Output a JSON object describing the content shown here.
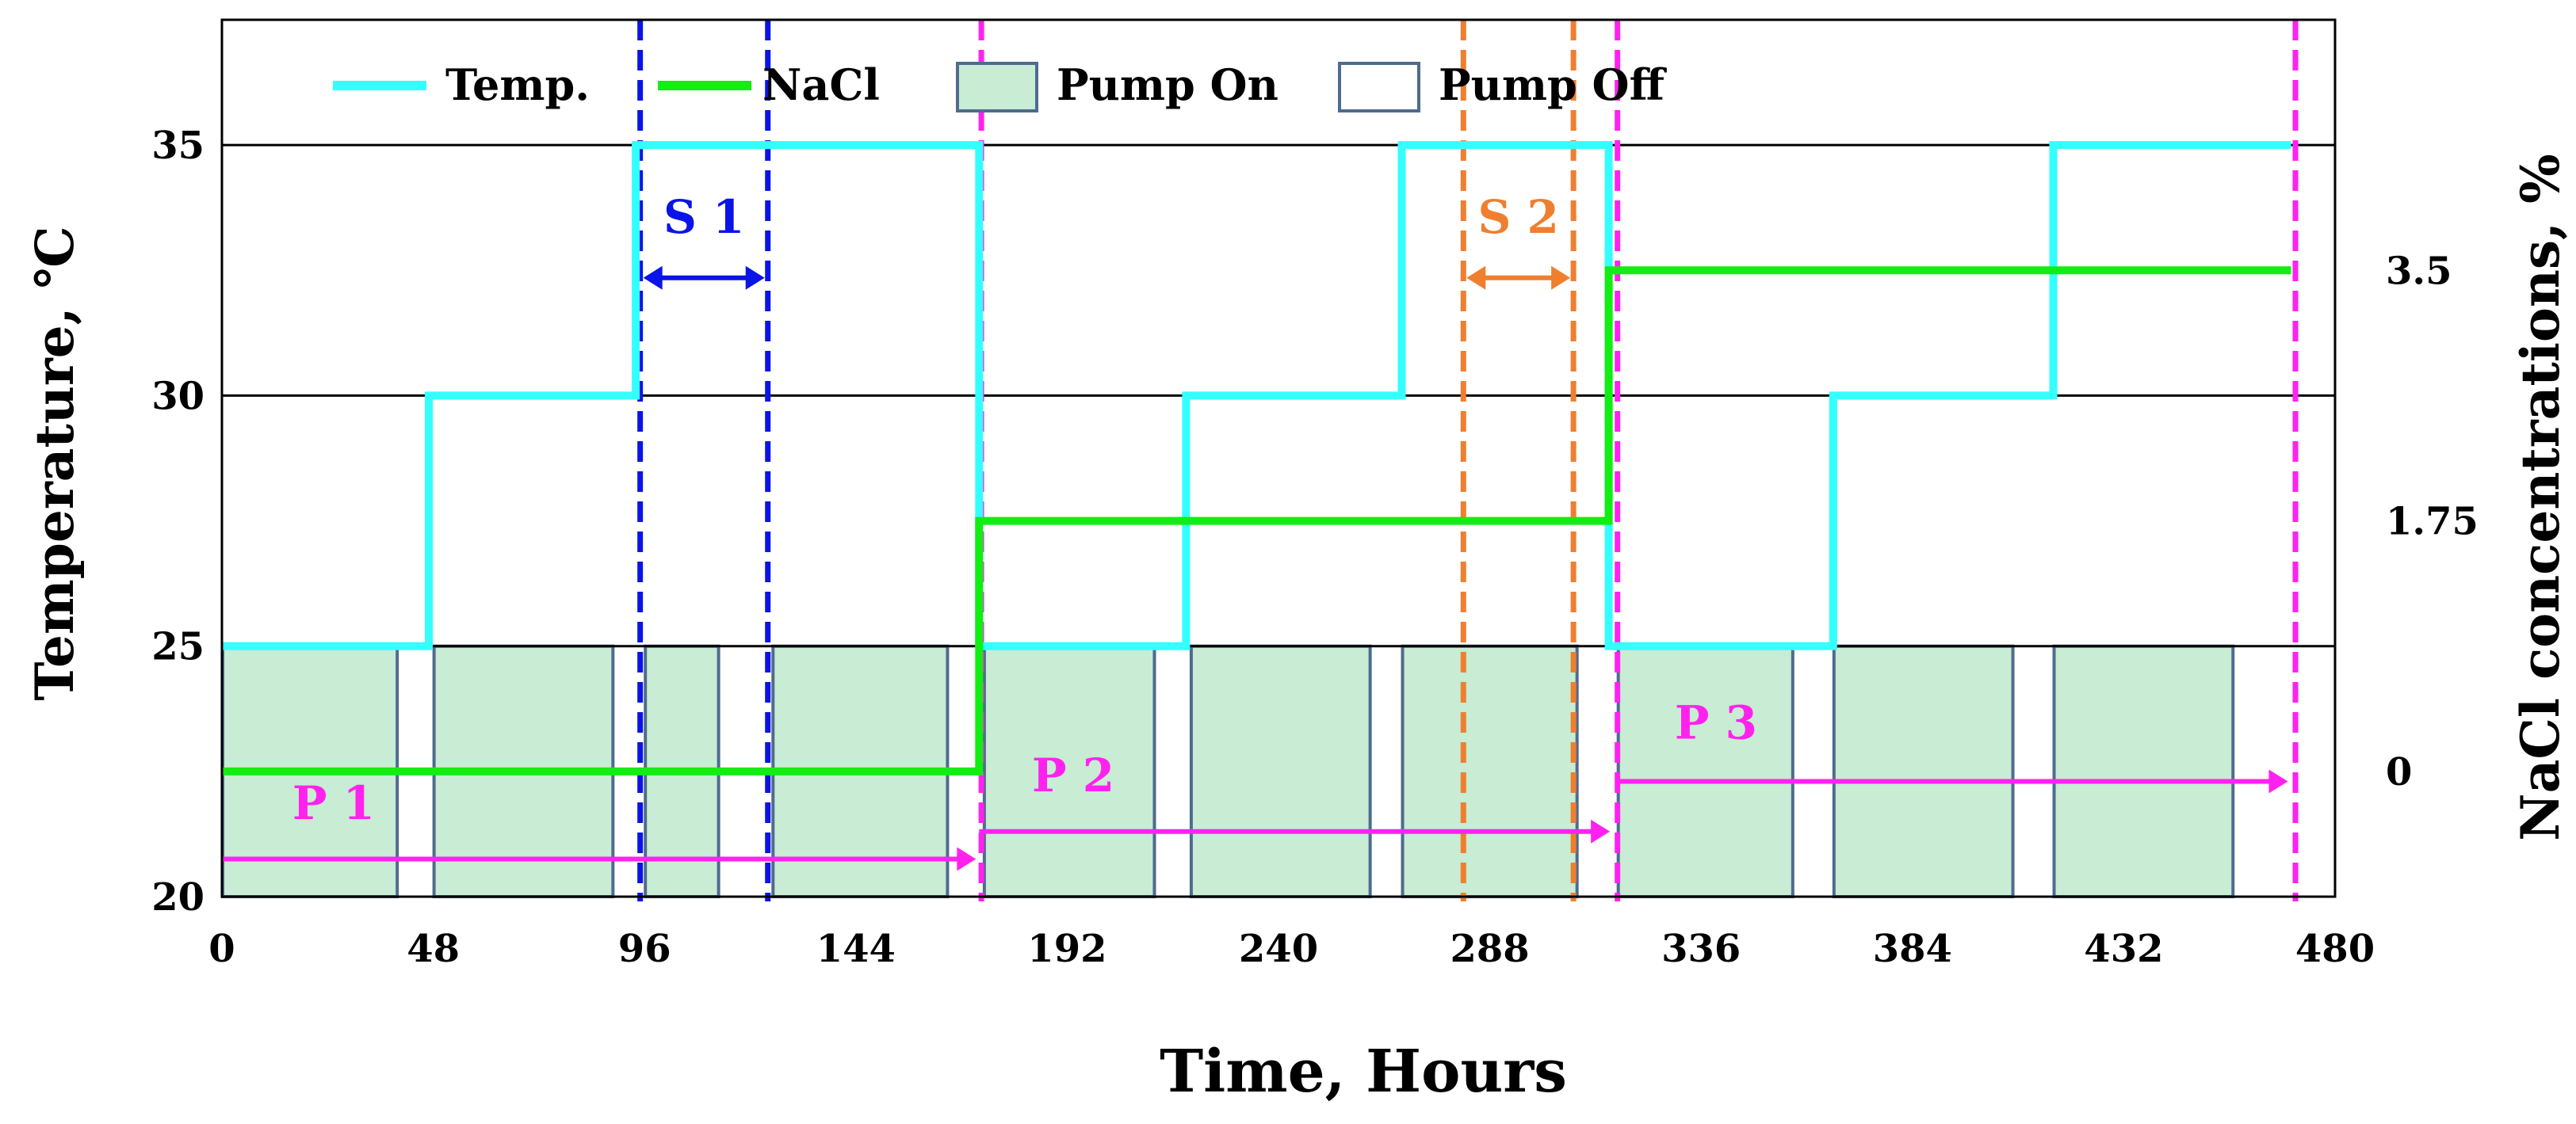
{
  "chart_data": {
    "type": "line",
    "xlabel": "Time, Hours",
    "ylabel": "Temperature, ℃",
    "y2label": "NaCl concentrations, %",
    "xlim": [
      0,
      480
    ],
    "ylim": [
      20,
      37.5
    ],
    "x_ticks": [
      0,
      48,
      96,
      144,
      192,
      240,
      288,
      336,
      384,
      432,
      480
    ],
    "x_tick_labels": [
      "0",
      "48",
      "96",
      "144",
      "192",
      "240",
      "288",
      "336",
      "384",
      "432",
      "480"
    ],
    "y_ticks": [
      20,
      25,
      30,
      35
    ],
    "y_tick_labels": [
      "20",
      "25",
      "30",
      "35"
    ],
    "y2_ticks": [
      {
        "y": 22.5,
        "label": "0"
      },
      {
        "y": 27.5,
        "label": "1.75"
      },
      {
        "y": 32.5,
        "label": "3.5"
      }
    ],
    "gridlines_y": [
      25,
      30,
      35
    ],
    "legend": {
      "position": "top-left",
      "entries": [
        {
          "label": "Temp.",
          "kind": "line",
          "color": "#33ffff"
        },
        {
          "label": "NaCl",
          "kind": "line",
          "color": "#11ee11"
        },
        {
          "label": "Pump On",
          "kind": "box",
          "fill": "#c8ecd4",
          "stroke": "#4f6b8d"
        },
        {
          "label": "Pump Off",
          "kind": "box",
          "fill": "#ffffff",
          "stroke": "#4f6b8d"
        }
      ]
    },
    "series": [
      {
        "name": "Temp.",
        "color": "#33ffff",
        "points": [
          [
            0,
            25
          ],
          [
            47,
            25
          ],
          [
            47,
            30
          ],
          [
            94,
            30
          ],
          [
            94,
            35
          ],
          [
            172,
            35
          ],
          [
            172,
            25
          ],
          [
            219,
            25
          ],
          [
            219,
            30
          ],
          [
            268,
            30
          ],
          [
            268,
            35
          ],
          [
            315,
            35
          ],
          [
            315,
            25
          ],
          [
            366,
            25
          ],
          [
            366,
            30
          ],
          [
            416,
            30
          ],
          [
            416,
            35
          ],
          [
            470,
            35
          ]
        ]
      },
      {
        "name": "NaCl",
        "color": "#11ee11",
        "points": [
          [
            0,
            22.5
          ],
          [
            172,
            22.5
          ],
          [
            172,
            27.5
          ],
          [
            315,
            27.5
          ],
          [
            315,
            32.5
          ],
          [
            470,
            32.5
          ]
        ]
      }
    ],
    "pump_on_periods": [
      [
        0,
        40
      ],
      [
        48,
        89
      ],
      [
        96,
        113
      ],
      [
        125,
        165
      ],
      [
        173,
        212
      ],
      [
        220,
        261
      ],
      [
        268,
        308
      ],
      [
        317,
        357
      ],
      [
        366,
        407
      ],
      [
        416,
        457
      ]
    ],
    "box_top": 25,
    "vertical_markers": [
      {
        "x": 95,
        "color": "#0a14e6"
      },
      {
        "x": 124,
        "color": "#0a14e6"
      },
      {
        "x": 172.5,
        "color": "#ff22ee"
      },
      {
        "x": 282,
        "color": "#ef7f2f"
      },
      {
        "x": 307,
        "color": "#ef7f2f"
      },
      {
        "x": 317,
        "color": "#ff22ee"
      },
      {
        "x": 471,
        "color": "#ff22ee"
      }
    ],
    "annotations": [
      {
        "label": "S 1",
        "from": 95,
        "to": 124,
        "y": 32.35,
        "label_y": 33.25,
        "color": "#0a14e6",
        "double": true
      },
      {
        "label": "S 2",
        "from": 282,
        "to": 307,
        "y": 32.35,
        "label_y": 33.25,
        "color": "#ef7f2f",
        "double": true
      },
      {
        "label": "P 1",
        "from": 0,
        "to": 172,
        "y": 20.75,
        "label_x": 16,
        "label_y": 21.55,
        "color": "#ff22ee",
        "double": false
      },
      {
        "label": "P 2",
        "from": 172,
        "to": 316,
        "y": 21.3,
        "label_x": 184,
        "label_y": 22.1,
        "color": "#ff22ee",
        "double": false
      },
      {
        "label": "P 3",
        "from": 317,
        "to": 470,
        "y": 22.3,
        "label_x": 330,
        "label_y": 23.15,
        "color": "#ff22ee",
        "double": false
      }
    ]
  }
}
